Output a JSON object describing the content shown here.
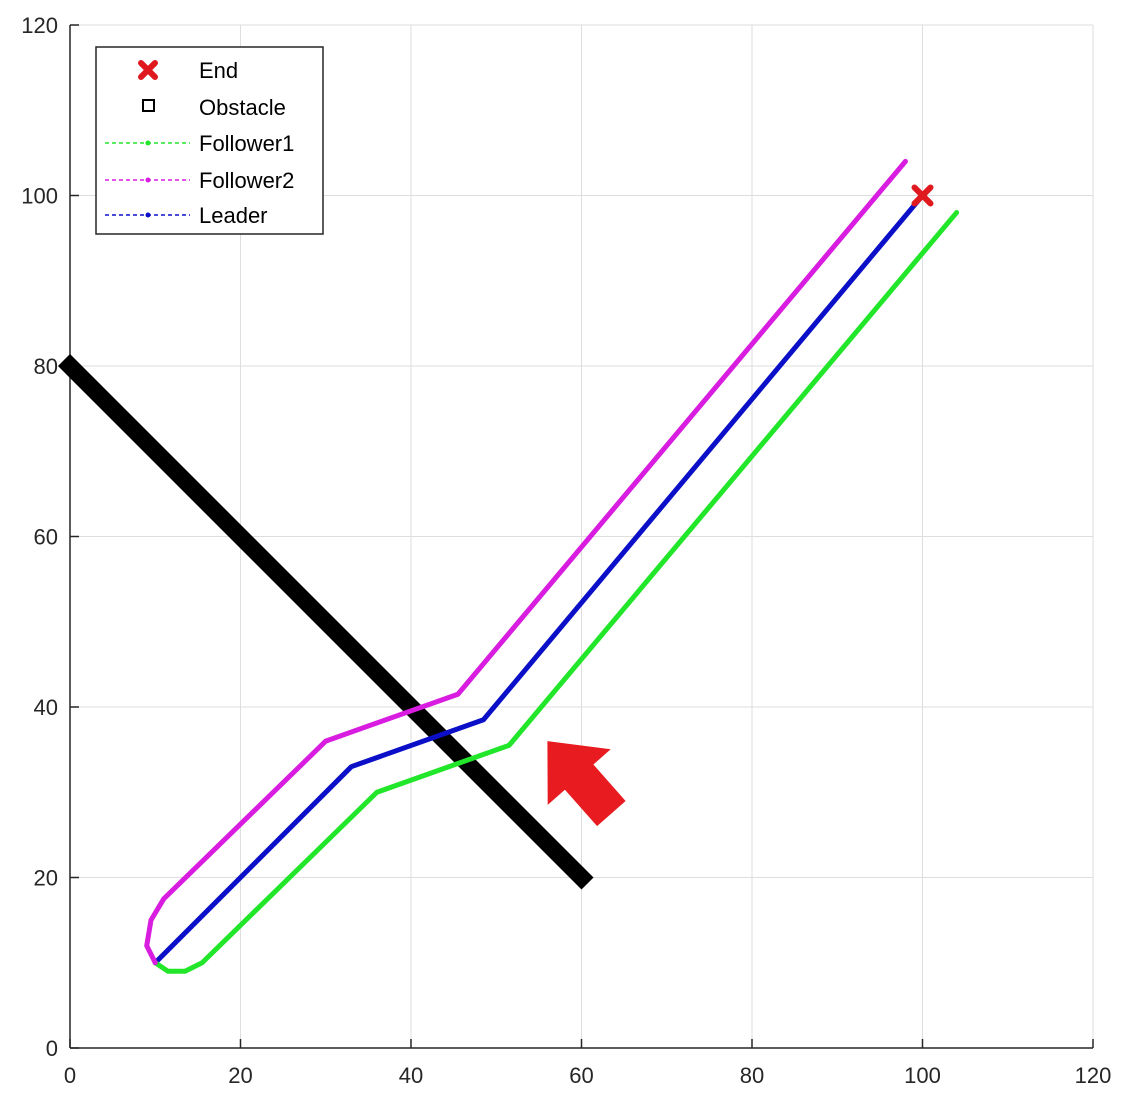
{
  "chart_data": {
    "type": "line",
    "title": "",
    "xlabel": "",
    "ylabel": "",
    "xlim": [
      0,
      120
    ],
    "ylim": [
      0,
      120
    ],
    "xticks": [
      0,
      20,
      40,
      60,
      80,
      100,
      120
    ],
    "yticks": [
      0,
      20,
      40,
      60,
      80,
      100,
      120
    ],
    "grid": true,
    "legend_position": "top-left",
    "series": [
      {
        "name": "Leader",
        "color": "#0b10c8",
        "x": [
          10,
          33,
          48.5,
          100
        ],
        "y": [
          10,
          33,
          38.5,
          100
        ]
      },
      {
        "name": "Follower1",
        "color": "#22e62a",
        "x": [
          10,
          11.5,
          13.5,
          15.5,
          36,
          51.5,
          104
        ],
        "y": [
          10,
          9,
          9,
          10,
          30,
          35.5,
          98
        ]
      },
      {
        "name": "Follower2",
        "color": "#d81ce0",
        "x": [
          10,
          9,
          9.5,
          11,
          30,
          45.5,
          98
        ],
        "y": [
          10,
          12,
          15,
          17.5,
          36,
          41.5,
          104
        ]
      }
    ],
    "obstacle": {
      "name": "Obstacle",
      "color": "#000000",
      "x": [
        0,
        60
      ],
      "y": [
        80,
        20
      ]
    },
    "end_point": {
      "name": "End",
      "color": "#e0191e",
      "x": 100,
      "y": 100
    },
    "annotation_arrow": {
      "color": "#e81c20",
      "tip": [
        56,
        36
      ],
      "tail": [
        63.5,
        27.5
      ]
    }
  },
  "legend": {
    "items": [
      {
        "label": "End",
        "marker": "x",
        "color": "#e0191e"
      },
      {
        "label": "Obstacle",
        "marker": "square",
        "color": "#000000"
      },
      {
        "label": "Follower1",
        "marker": "dash",
        "color": "#22e62a"
      },
      {
        "label": "Follower2",
        "marker": "dash",
        "color": "#d81ce0"
      },
      {
        "label": "Leader",
        "marker": "dash",
        "color": "#0b10c8"
      }
    ]
  }
}
